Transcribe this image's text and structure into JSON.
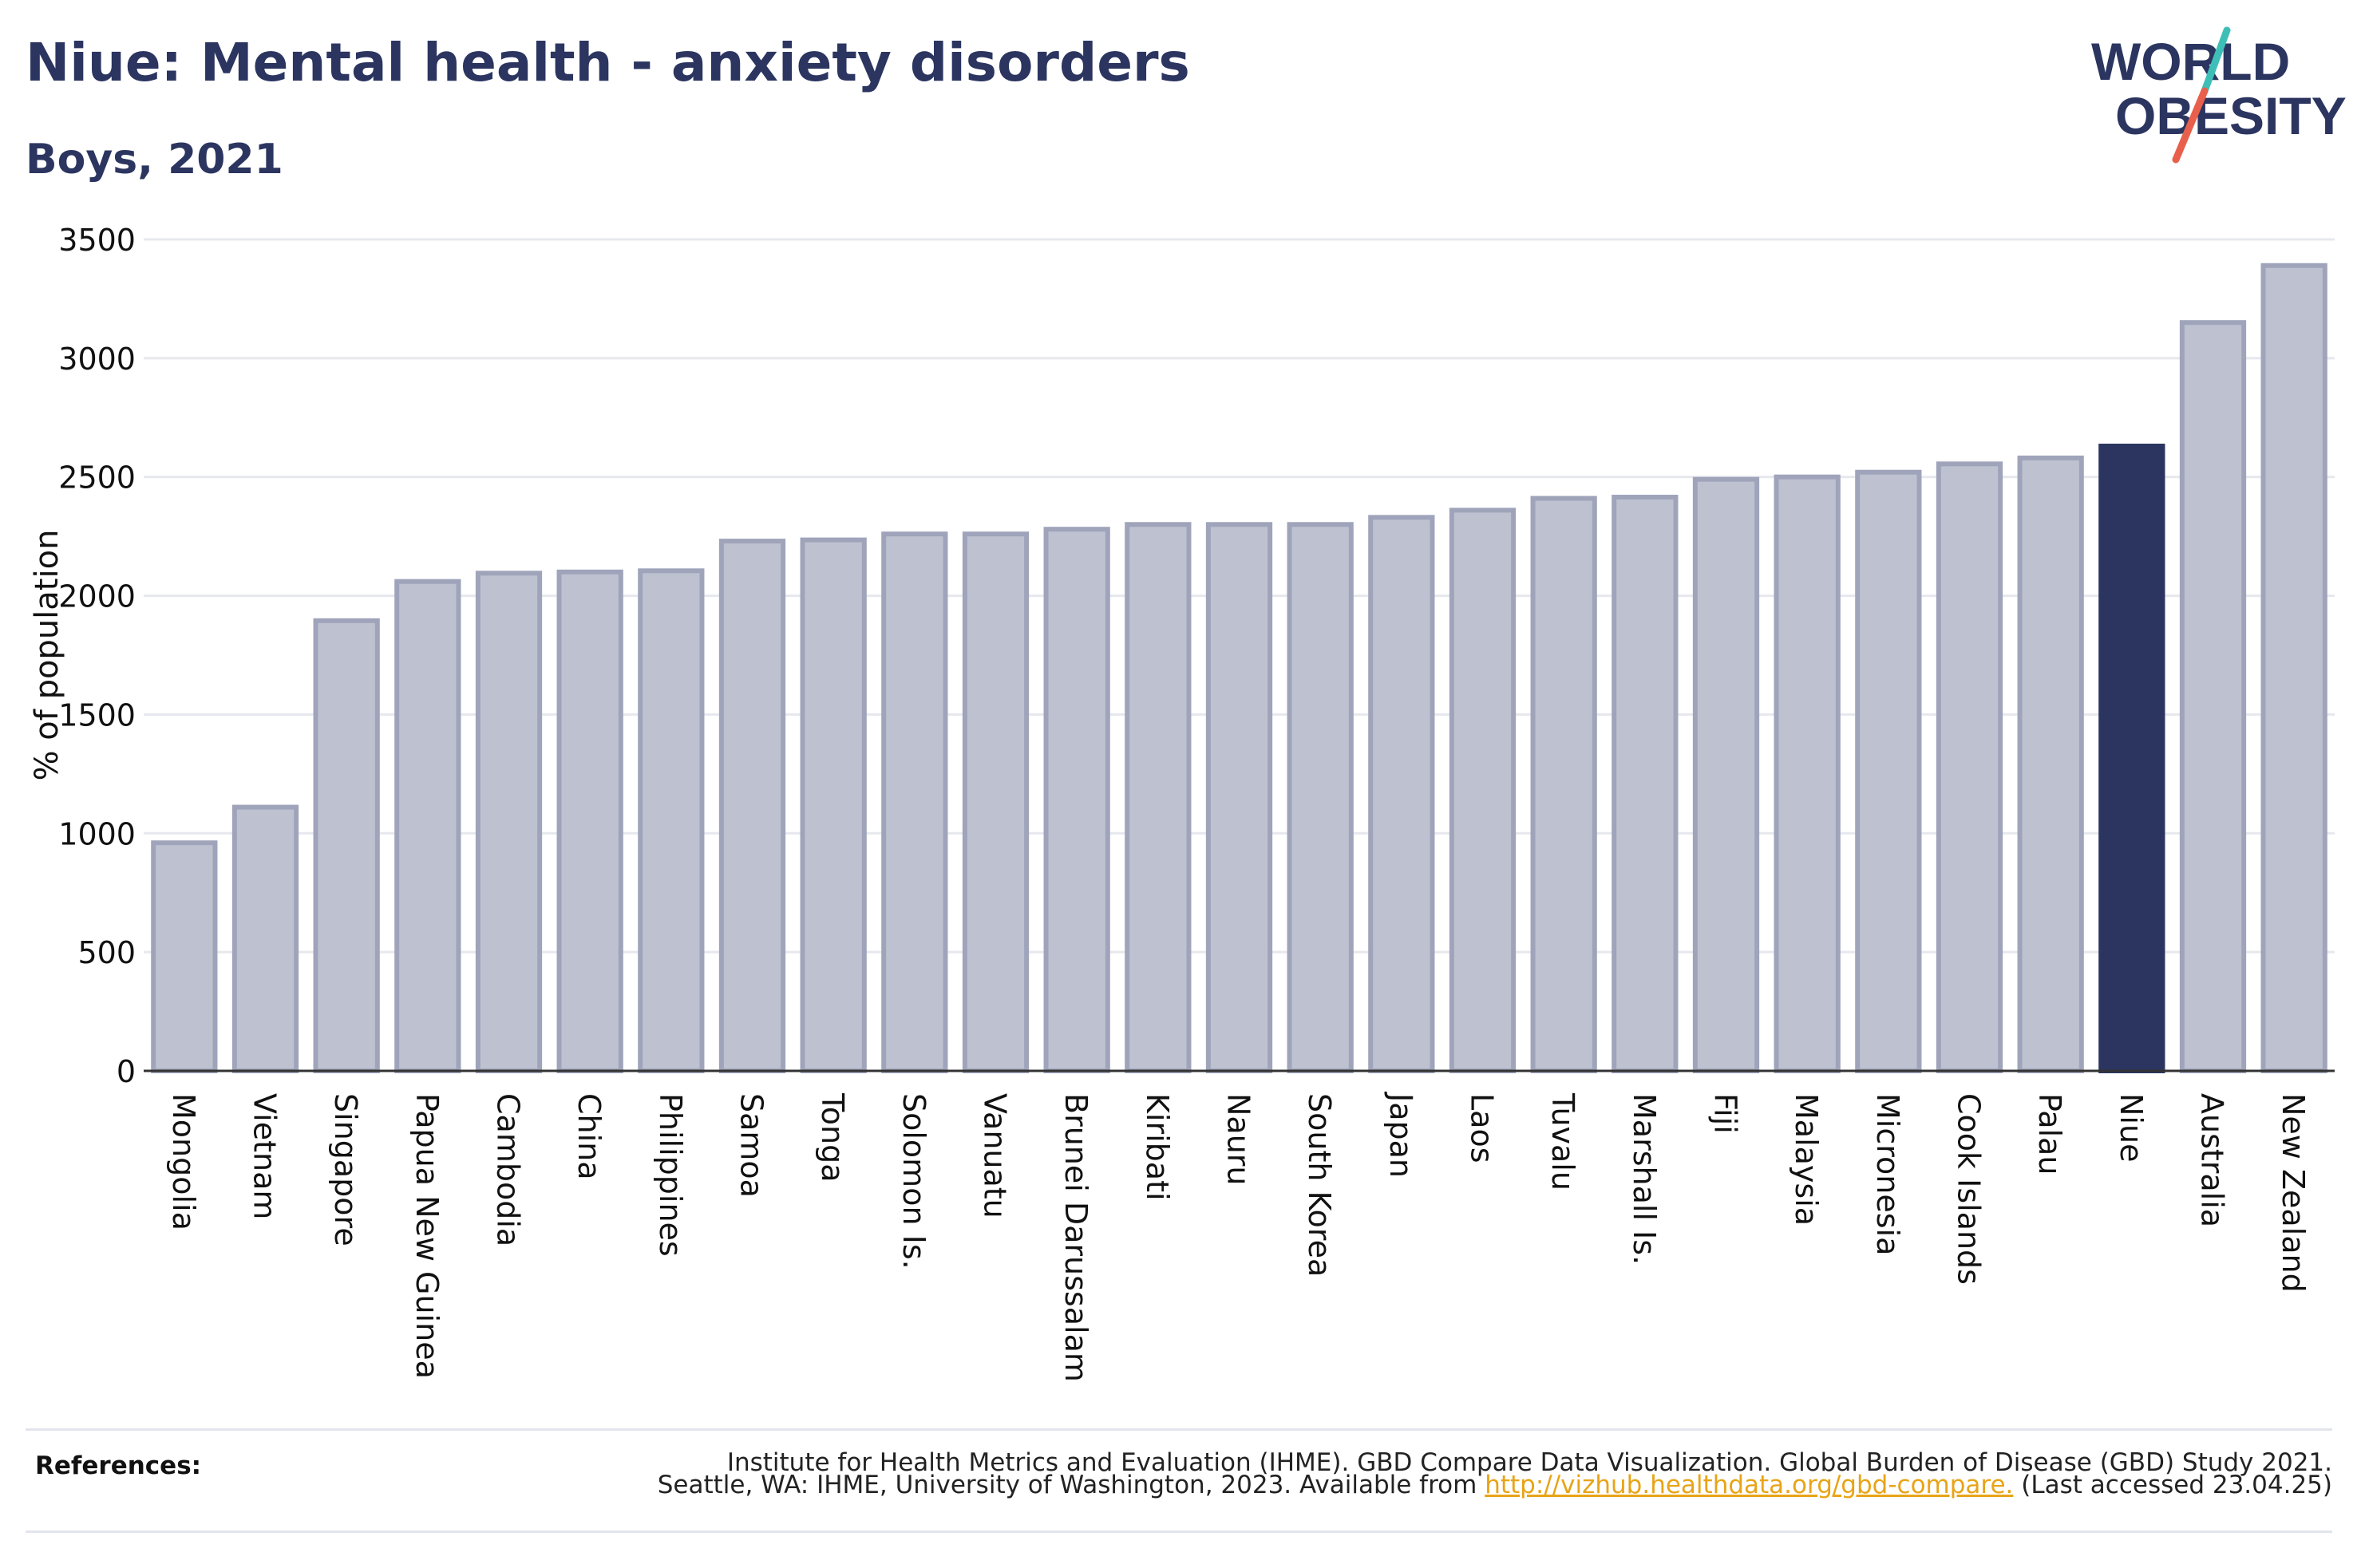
{
  "header": {
    "title": "Niue: Mental health - anxiety disorders",
    "subtitle": "Boys, 2021"
  },
  "logo": {
    "line1": "WORLD",
    "line2": "OBESITY",
    "slash_colors": [
      "#3dbfb8",
      "#e8604c"
    ]
  },
  "colors": {
    "bar": "#bec2d0",
    "bar_edge": "#9fa4bb",
    "highlight": "#2b3560",
    "text": "#2b3560",
    "link": "#e8a417"
  },
  "chart_data": {
    "type": "bar",
    "title": "Niue: Mental health - anxiety disorders",
    "subtitle": "Boys, 2021",
    "xlabel": "",
    "ylabel": "% of population",
    "ylim": [
      0,
      3500
    ],
    "yticks": [
      0,
      500,
      1000,
      1500,
      2000,
      2500,
      3000,
      3500
    ],
    "grid": true,
    "highlight": "Niue",
    "categories": [
      "Mongolia",
      "Vietnam",
      "Singapore",
      "Papua New Guinea",
      "Cambodia",
      "China",
      "Philippines",
      "Samoa",
      "Tonga",
      "Solomon Is.",
      "Vanuatu",
      "Brunei Darussalam",
      "Kiribati",
      "Nauru",
      "South Korea",
      "Japan",
      "Laos",
      "Tuvalu",
      "Marshall Is.",
      "Fiji",
      "Malaysia",
      "Micronesia",
      "Cook Islands",
      "Palau",
      "Niue",
      "Australia",
      "New Zealand"
    ],
    "values": [
      960,
      1110,
      1895,
      2060,
      2095,
      2100,
      2105,
      2230,
      2235,
      2260,
      2260,
      2280,
      2300,
      2300,
      2300,
      2330,
      2360,
      2410,
      2415,
      2490,
      2500,
      2520,
      2555,
      2580,
      2630,
      3150,
      3390
    ]
  },
  "references": {
    "label": "References:",
    "line1": "Institute for Health Metrics and Evaluation (IHME). GBD Compare Data Visualization. Global Burden of Disease (GBD) Study 2021.",
    "line2_prefix": "Seattle, WA: IHME, University of Washington, 2023. Available from ",
    "link": "http://vizhub.healthdata.org/gbd-compare.",
    "line2_suffix": " (Last accessed 23.04.25)"
  }
}
